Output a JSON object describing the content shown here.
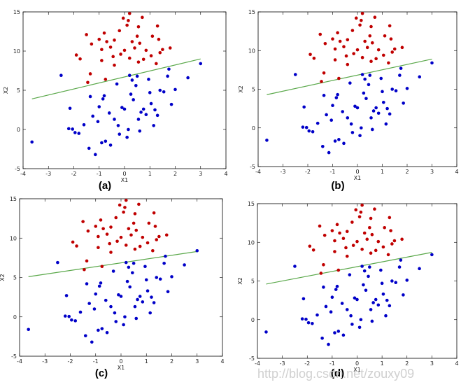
{
  "watermark": "http://blog.csdn.net/zouxy09",
  "colors": {
    "class_red": "#c00000",
    "class_blue": "#0000c8",
    "line": "#5aa84a",
    "axes": "#000000"
  },
  "chart_data": [
    {
      "type": "scatter",
      "panel_label": "(a)",
      "xlabel": "X1",
      "ylabel": "X2",
      "xlim": [
        -4,
        4
      ],
      "ylim": [
        -5,
        15
      ],
      "xticks": [
        -4,
        -3,
        -2,
        -1,
        0,
        1,
        2,
        3,
        4
      ],
      "yticks": [
        -5,
        0,
        5,
        10,
        15
      ],
      "grid": false,
      "line": {
        "x": [
          -3.65,
          3.0
        ],
        "y": [
          3.9,
          9.0
        ]
      }
    },
    {
      "type": "scatter",
      "panel_label": "(b)",
      "xlabel": "X1",
      "ylabel": "X2",
      "xlim": [
        -4,
        4
      ],
      "ylim": [
        -5,
        15
      ],
      "xticks": [
        -4,
        -3,
        -2,
        -1,
        0,
        1,
        2,
        3,
        4
      ],
      "yticks": [
        -5,
        0,
        5,
        10,
        15
      ],
      "grid": false,
      "line": {
        "x": [
          -3.65,
          3.0
        ],
        "y": [
          4.3,
          8.9
        ]
      }
    },
    {
      "type": "scatter",
      "panel_label": "(c)",
      "xlabel": "X1",
      "ylabel": "X2",
      "xlim": [
        -4,
        4
      ],
      "ylim": [
        -5,
        15
      ],
      "xticks": [
        -4,
        -3,
        -2,
        -1,
        0,
        1,
        2,
        3,
        4
      ],
      "yticks": [
        -5,
        0,
        5,
        10,
        15
      ],
      "grid": false,
      "line": {
        "x": [
          -3.65,
          3.0
        ],
        "y": [
          5.1,
          8.3
        ]
      }
    },
    {
      "type": "scatter",
      "panel_label": "(d)",
      "xlabel": "X1",
      "ylabel": "X2",
      "xlim": [
        -4,
        4
      ],
      "ylim": [
        -5,
        15
      ],
      "xticks": [
        -4,
        -3,
        -2,
        -1,
        0,
        1,
        2,
        3,
        4
      ],
      "yticks": [
        -5,
        0,
        5,
        10,
        15
      ],
      "grid": false,
      "line": {
        "x": [
          -3.65,
          3.0
        ],
        "y": [
          4.6,
          8.7
        ]
      }
    }
  ],
  "points": {
    "red": [
      [
        0.2,
        14.8
      ],
      [
        -0.05,
        14.2
      ],
      [
        0.15,
        13.9
      ],
      [
        0.7,
        14.3
      ],
      [
        0.55,
        13.1
      ],
      [
        1.3,
        13.2
      ],
      [
        0.1,
        13.3
      ],
      [
        -0.2,
        12.6
      ],
      [
        -0.8,
        12.3
      ],
      [
        -1.5,
        12.1
      ],
      [
        0.5,
        11.9
      ],
      [
        1.1,
        11.9
      ],
      [
        -1.0,
        11.5
      ],
      [
        -0.7,
        11.2
      ],
      [
        -0.4,
        11.4
      ],
      [
        0.3,
        11.2
      ],
      [
        0.6,
        11.0
      ],
      [
        1.35,
        11.5
      ],
      [
        1.5,
        10.2
      ],
      [
        1.8,
        10.4
      ],
      [
        -1.3,
        10.9
      ],
      [
        -0.55,
        10.5
      ],
      [
        -0.9,
        10.2
      ],
      [
        0.0,
        10.1
      ],
      [
        0.4,
        10.4
      ],
      [
        0.85,
        10.1
      ],
      [
        1.05,
        9.4
      ],
      [
        -1.9,
        9.5
      ],
      [
        -1.75,
        9.0
      ],
      [
        -0.45,
        9.3
      ],
      [
        0.2,
        9.1
      ],
      [
        -0.9,
        8.8
      ],
      [
        0.55,
        8.6
      ],
      [
        -0.4,
        8.2
      ],
      [
        1.25,
        8.4
      ],
      [
        1.4,
        9.8
      ],
      [
        -0.15,
        9.6
      ],
      [
        0.75,
        8.95
      ],
      [
        -1.35,
        7.1
      ],
      [
        -1.45,
        6.0
      ],
      [
        -0.75,
        6.4
      ]
    ],
    "blue": [
      [
        -3.65,
        -1.6
      ],
      [
        -2.5,
        6.9
      ],
      [
        -2.15,
        2.7
      ],
      [
        -2.2,
        0.1
      ],
      [
        -1.95,
        -0.4
      ],
      [
        -1.8,
        -0.5
      ],
      [
        -1.6,
        0.6
      ],
      [
        -1.4,
        -2.4
      ],
      [
        -1.15,
        -3.2
      ],
      [
        -1.25,
        1.7
      ],
      [
        -1.05,
        1.0
      ],
      [
        -0.9,
        -1.7
      ],
      [
        -0.75,
        -1.5
      ],
      [
        -0.85,
        3.9
      ],
      [
        -0.8,
        4.3
      ],
      [
        -0.6,
        2.1
      ],
      [
        -0.55,
        -2.0
      ],
      [
        -0.4,
        1.3
      ],
      [
        -0.25,
        0.5
      ],
      [
        -0.1,
        2.8
      ],
      [
        0.0,
        2.6
      ],
      [
        0.1,
        -1.0
      ],
      [
        0.15,
        0.0
      ],
      [
        0.2,
        6.9
      ],
      [
        0.25,
        4.5
      ],
      [
        0.35,
        3.8
      ],
      [
        0.5,
        6.8
      ],
      [
        0.55,
        1.3
      ],
      [
        0.65,
        2.2
      ],
      [
        0.75,
        2.6
      ],
      [
        0.85,
        1.9
      ],
      [
        0.95,
        6.4
      ],
      [
        1.0,
        4.7
      ],
      [
        1.05,
        3.3
      ],
      [
        1.15,
        0.5
      ],
      [
        1.3,
        1.8
      ],
      [
        1.4,
        5.0
      ],
      [
        1.55,
        4.8
      ],
      [
        1.7,
        6.8
      ],
      [
        1.85,
        3.2
      ],
      [
        2.0,
        5.1
      ],
      [
        2.5,
        6.6
      ],
      [
        3.0,
        8.4
      ],
      [
        -1.35,
        4.2
      ],
      [
        -1.0,
        2.9
      ],
      [
        -0.3,
        5.8
      ],
      [
        0.3,
        6.3
      ],
      [
        0.45,
        5.6
      ],
      [
        -0.2,
        -0.6
      ],
      [
        1.2,
        2.5
      ],
      [
        -2.05,
        0.05
      ],
      [
        0.6,
        -0.2
      ],
      [
        1.75,
        7.7
      ]
    ]
  }
}
